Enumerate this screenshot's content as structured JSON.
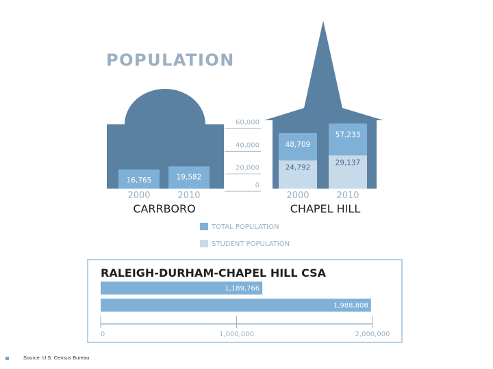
{
  "title": "POPULATION",
  "source": "Source: U.S. Census Bureau",
  "colors": {
    "building": "#5a81a2",
    "total": "#7fb0d8",
    "student": "#c7daea",
    "axis": "#9bb3c7",
    "text": "#9ab0c2",
    "dark_text": "#1f1f1f",
    "white_text": "#ffffff"
  },
  "legend": {
    "total": "TOTAL POPULATION",
    "student": "STUDENT POPULATION"
  },
  "chart_data": [
    {
      "type": "bar",
      "title": "POPULATION",
      "y_ticks": [
        "60,000",
        "40,000",
        "20,000",
        "0"
      ],
      "ylim": [
        0,
        60000
      ],
      "groups": [
        {
          "name": "CARRBORO",
          "categories": [
            "2000",
            "2010"
          ],
          "series": [
            {
              "name": "TOTAL POPULATION",
              "values": [
                16765,
                19582
              ],
              "labels": [
                "16,765",
                "19,582"
              ]
            }
          ]
        },
        {
          "name": "CHAPEL HILL",
          "categories": [
            "2000",
            "2010"
          ],
          "series": [
            {
              "name": "TOTAL POPULATION",
              "values": [
                48709,
                57233
              ],
              "labels": [
                "48,709",
                "57,233"
              ]
            },
            {
              "name": "STUDENT POPULATION",
              "values": [
                24792,
                29137
              ],
              "labels": [
                "24,792",
                "29,137"
              ]
            }
          ]
        }
      ]
    },
    {
      "type": "bar",
      "orientation": "horizontal",
      "title": "RALEIGH-DURHAM-CHAPEL HILL CSA",
      "values": [
        1189766,
        1988808
      ],
      "labels": [
        "1,189,766",
        "1,988,808"
      ],
      "x_ticks": [
        "0",
        "1,000,000",
        "2,000,000"
      ],
      "xlim": [
        0,
        2000000
      ]
    }
  ]
}
